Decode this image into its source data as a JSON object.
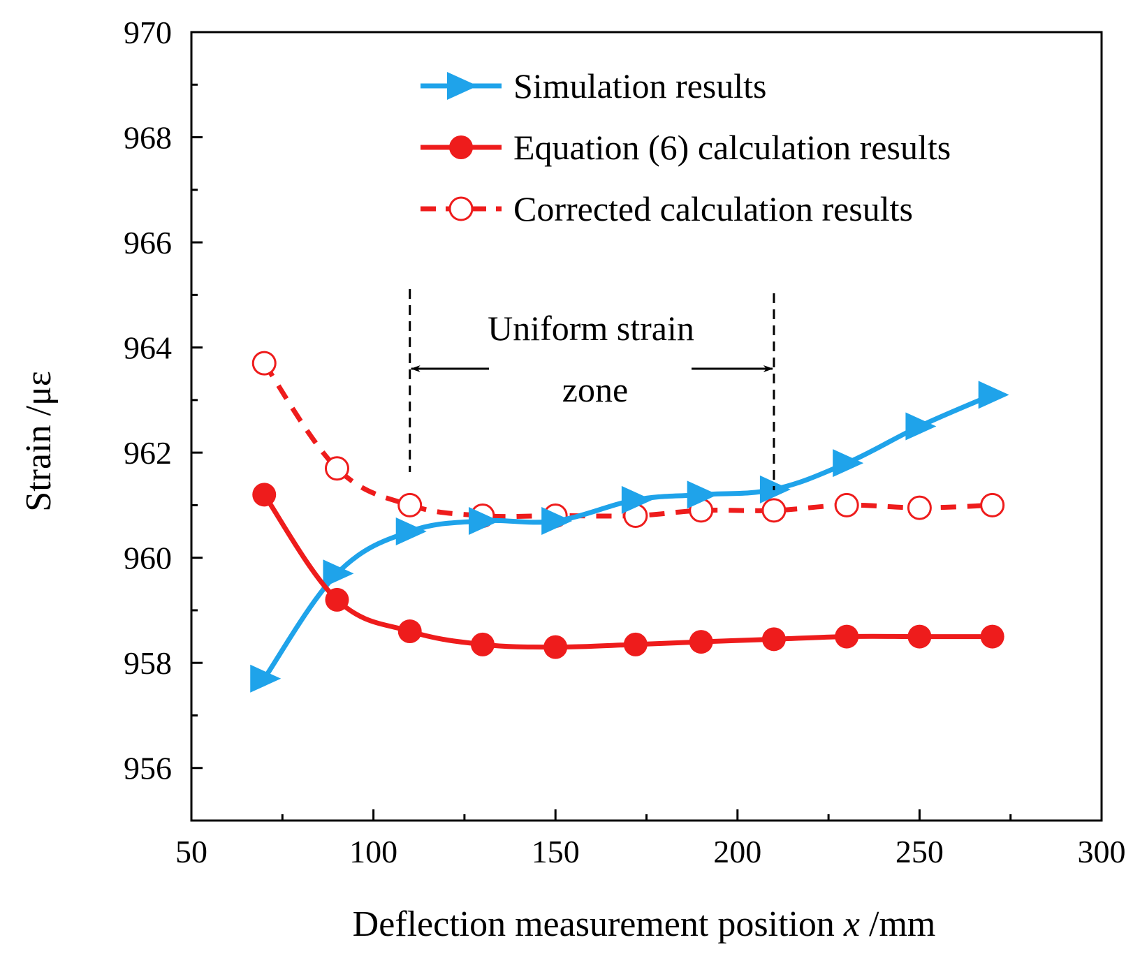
{
  "chart_data": {
    "type": "line",
    "xlabel": "Deflection measurement position",
    "xlabel_var": "x",
    "xlabel_unit": "/mm",
    "ylabel": "Strain /με",
    "xlim": [
      50,
      300
    ],
    "ylim": [
      955,
      970
    ],
    "x_ticks": [
      50,
      100,
      150,
      200,
      250,
      300
    ],
    "y_ticks": [
      956,
      958,
      960,
      962,
      964,
      966,
      968,
      970
    ],
    "grid": false,
    "legend_position": "top-right",
    "series": [
      {
        "name": "Simulation results",
        "color": "#1fa3ea",
        "marker": "triangle-right",
        "line": "solid",
        "x": [
          70,
          90,
          110,
          130,
          150,
          172,
          190,
          210,
          230,
          250,
          270
        ],
        "y": [
          957.7,
          959.7,
          960.5,
          960.7,
          960.7,
          961.1,
          961.2,
          961.3,
          961.8,
          962.5,
          963.1
        ]
      },
      {
        "name": "Equation (6) calculation results",
        "color": "#ee1c1c",
        "marker": "circle-filled",
        "line": "solid",
        "x": [
          70,
          90,
          110,
          130,
          150,
          172,
          190,
          210,
          230,
          250,
          270
        ],
        "y": [
          961.2,
          959.2,
          958.6,
          958.35,
          958.3,
          958.35,
          958.4,
          958.45,
          958.5,
          958.5,
          958.5
        ]
      },
      {
        "name": "Corrected calculation results",
        "color": "#ee1c1c",
        "marker": "circle-open",
        "line": "dashed",
        "x": [
          70,
          90,
          110,
          130,
          150,
          172,
          190,
          210,
          230,
          250,
          270
        ],
        "y": [
          963.7,
          961.7,
          961.0,
          960.8,
          960.8,
          960.8,
          960.9,
          960.9,
          961.0,
          960.95,
          961.0
        ]
      }
    ],
    "annotation": {
      "line1": "Uniform strain",
      "line2": "zone",
      "x_start": 110,
      "x_end": 210
    }
  }
}
